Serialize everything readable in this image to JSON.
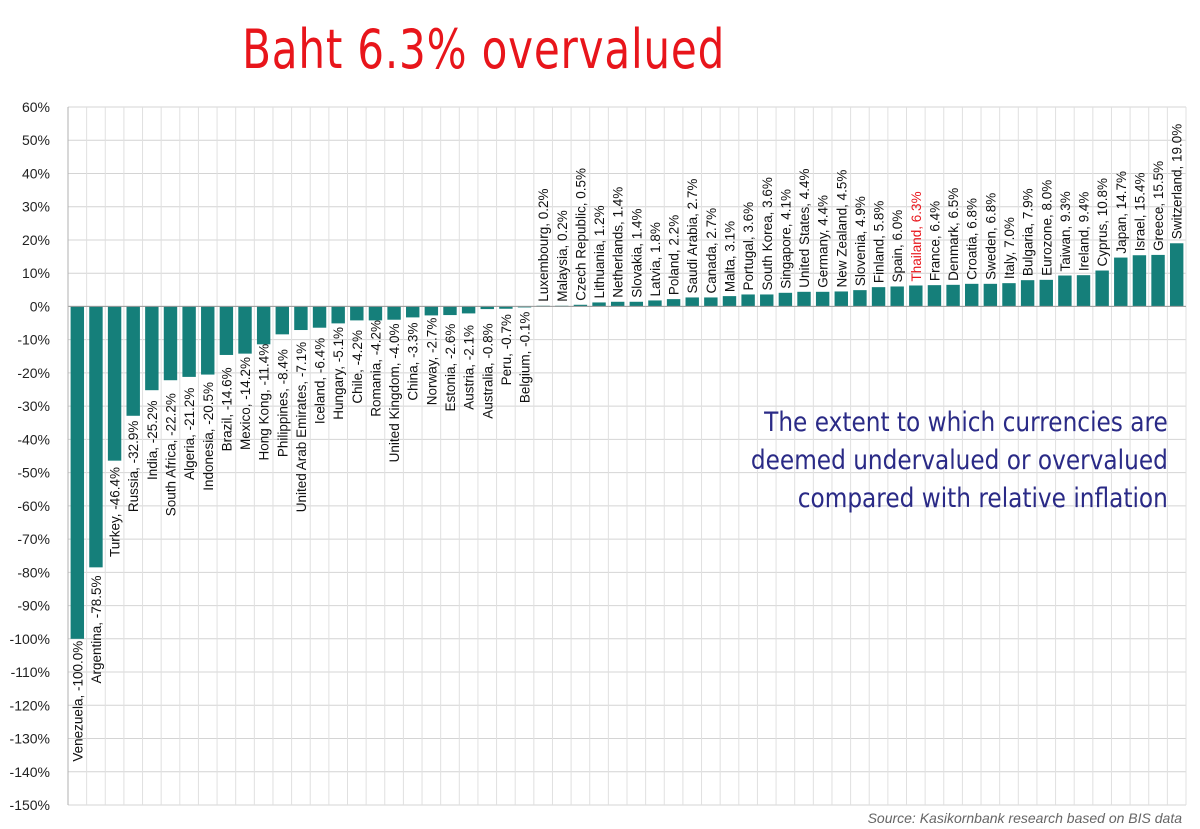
{
  "chart_data": {
    "type": "bar",
    "title": "Baht 6.3% overvalued",
    "xlabel": "",
    "ylabel": "",
    "ylim": [
      -150,
      60
    ],
    "ytick_step": 10,
    "grid": true,
    "bar_color": "#157f7a",
    "highlight_color": "#e8151b",
    "categories": [
      "Venezuela",
      "Argentina",
      "Turkey",
      "Russia",
      "India",
      "South Africa",
      "Algeria",
      "Indonesia",
      "Brazil",
      "Mexico",
      "Hong Kong",
      "Philippines",
      "United Arab Emirates",
      "Iceland",
      "Hungary",
      "Chile",
      "Romania",
      "United Kingdom",
      "China",
      "Norway",
      "Estonia",
      "Austria",
      "Australia",
      "Peru",
      "Belgium",
      "Luxembourg",
      "Malaysia",
      "Czech Republic",
      "Lithuania",
      "Netherlands",
      "Slovakia",
      "Latvia",
      "Poland",
      "Saudi Arabia",
      "Canada",
      "Malta",
      "Portugal",
      "South Korea",
      "Singapore",
      "United States",
      "Germany",
      "New Zealand",
      "Slovenia",
      "Finland",
      "Spain",
      "Thailand",
      "France",
      "Denmark",
      "Croatia",
      "Sweden",
      "Italy",
      "Bulgaria",
      "Eurozone",
      "Taiwan",
      "Ireland",
      "Cyprus",
      "Japan",
      "Israel",
      "Greece",
      "Switzerland"
    ],
    "values": [
      -100.0,
      -78.5,
      -46.4,
      -32.9,
      -25.2,
      -22.2,
      -21.2,
      -20.5,
      -14.6,
      -14.2,
      -11.4,
      -8.4,
      -7.1,
      -6.4,
      -5.1,
      -4.2,
      -4.2,
      -4.0,
      -3.3,
      -2.7,
      -2.6,
      -2.1,
      -0.8,
      -0.7,
      -0.1,
      0.2,
      0.2,
      0.5,
      1.2,
      1.4,
      1.4,
      1.8,
      2.2,
      2.7,
      2.7,
      3.1,
      3.6,
      3.6,
      4.1,
      4.4,
      4.4,
      4.5,
      4.9,
      5.8,
      6.0,
      6.3,
      6.4,
      6.5,
      6.8,
      6.8,
      7.0,
      7.9,
      8.0,
      9.3,
      9.4,
      10.8,
      14.7,
      15.4,
      15.5,
      19.0
    ],
    "labels": [
      "Venezuela, -100.0%",
      "Argentina, -78.5%",
      "Turkey, -46.4%",
      "Russia, -32.9%",
      "India, -25.2%",
      "South Africa, -22.2%",
      "Algeria, -21.2%",
      "Indonesia, -20.5%",
      "Brazil, -14.6%",
      "Mexico, -14.2%",
      "Hong Kong, -11.4%",
      "Philippines, -8.4%",
      "United Arab Emirates, -7.1%",
      "Iceland, -6.4%",
      "Hungary, -5.1%",
      "Chile, -4.2%",
      "Romania, -4.2%",
      "United Kingdom, -4.0%",
      "China, -3.3%",
      "Norway, -2.7%",
      "Estonia, -2.6%",
      "Austria, -2.1%",
      "Australia, -0.8%",
      "Peru, -0.7%",
      "Belgium, -0.1%",
      "Luxembourg, 0.2%",
      "Malaysia, 0.2%",
      "Czech Republic, 0.5%",
      "Lithuania, 1.2%",
      "Netherlands, 1.4%",
      "Slovakia, 1.4%",
      "Latvia, 1.8%",
      "Poland, 2.2%",
      "Saudi Arabia, 2.7%",
      "Canada, 2.7%",
      "Malta, 3.1%",
      "Portugal, 3.6%",
      "South Korea, 3.6%",
      "Singapore, 4.1%",
      "United States, 4.4%",
      "Germany, 4.4%",
      "New Zealand, 4.5%",
      "Slovenia, 4.9%",
      "Finland, 5.8%",
      "Spain, 6.0%",
      "Thailand, 6.3%",
      "France, 6.4%",
      "Denmark, 6.5%",
      "Croatia, 6.8%",
      "Sweden, 6.8%",
      "Italy, 7.0%",
      "Bulgaria, 7.9%",
      "Eurozone, 8.0%",
      "Taiwan, 9.3%",
      "Ireland, 9.4%",
      "Cyprus, 10.8%",
      "Japan, 14.7%",
      "Israel, 15.4%",
      "Greece, 15.5%",
      "Switzerland, 19.0%"
    ],
    "highlight": "Thailand",
    "yticks": [
      "60%",
      "50%",
      "40%",
      "30%",
      "20%",
      "10%",
      "0%",
      "-10%",
      "-20%",
      "-30%",
      "-40%",
      "-50%",
      "-60%",
      "-70%",
      "-80%",
      "-90%",
      "-100%",
      "-110%",
      "-120%",
      "-130%",
      "-140%",
      "-150%"
    ],
    "annotation": [
      "The extent to which currencies are",
      "deemed undervalued or overvalued",
      "compared with relative inflation"
    ],
    "source": "Source: Kasikornbank research based on BIS data"
  }
}
